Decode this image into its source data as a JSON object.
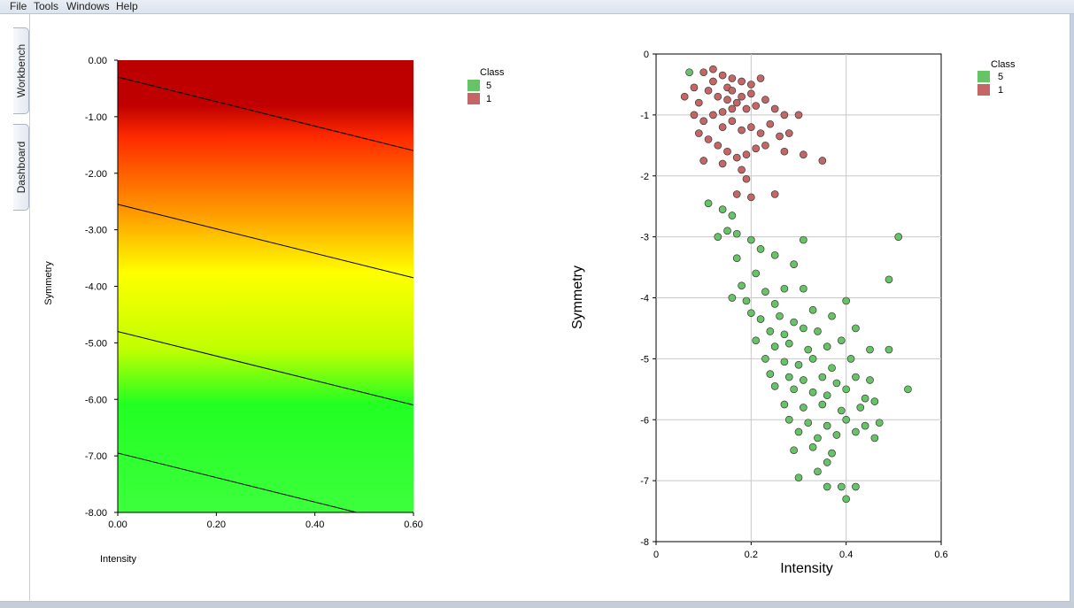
{
  "menu": [
    "File",
    "Tools",
    "Windows",
    "Help"
  ],
  "tabs": [
    "Workbench",
    "Dashboard"
  ],
  "colors": {
    "class_5": "#66c466",
    "class_1": "#c46666",
    "gradient_top": "#bb0000",
    "gradient_mid": "#ffff00",
    "gradient_low": "#3dff3d"
  },
  "left_plot": {
    "xlabel": "Intensity",
    "ylabel": "Symmetry",
    "xticks": [
      "0.00",
      "0.20",
      "0.40",
      "0.60"
    ],
    "yticks": [
      "0.00",
      "-1.00",
      "-2.00",
      "-3.00",
      "-4.00",
      "-5.00",
      "-6.00",
      "-7.00",
      "-8.00"
    ],
    "legend_title": "Class",
    "legend_items": [
      "5",
      "1"
    ]
  },
  "right_plot": {
    "xlabel": "Intensity",
    "ylabel": "Symmetry",
    "xticks": [
      "0",
      "0.2",
      "0.4",
      "0.6"
    ],
    "yticks": [
      "0",
      "-1",
      "-2",
      "-3",
      "-4",
      "-5",
      "-6",
      "-7",
      "-8"
    ],
    "legend_title": "Class",
    "legend_items": [
      "5",
      "1"
    ]
  },
  "chart_data": [
    {
      "type": "heatmap",
      "xlabel": "Intensity",
      "ylabel": "Symmetry",
      "xlim": [
        0,
        0.6
      ],
      "ylim": [
        -8,
        0
      ],
      "contours": [
        {
          "y_at_x0": -0.3,
          "y_at_x06": -1.6
        },
        {
          "y_at_x0": -2.55,
          "y_at_x06": -3.85
        },
        {
          "y_at_x0": -4.8,
          "y_at_x06": -6.1
        },
        {
          "y_at_x0": -6.95,
          "y_at_x06": -8.25
        }
      ],
      "legend": [
        "5",
        "1"
      ],
      "grid": false,
      "legend_position": "top-right"
    },
    {
      "type": "scatter",
      "xlabel": "Intensity",
      "ylabel": "Symmetry",
      "xlim": [
        0,
        0.6
      ],
      "ylim": [
        -8,
        0
      ],
      "grid": true,
      "legend_position": "top-right",
      "series": [
        {
          "name": "5",
          "points": [
            [
              0.07,
              -0.3
            ],
            [
              0.11,
              -2.45
            ],
            [
              0.14,
              -2.55
            ],
            [
              0.16,
              -2.65
            ],
            [
              0.15,
              -2.9
            ],
            [
              0.17,
              -2.95
            ],
            [
              0.13,
              -3.0
            ],
            [
              0.2,
              -3.05
            ],
            [
              0.31,
              -3.05
            ],
            [
              0.51,
              -3.0
            ],
            [
              0.22,
              -3.2
            ],
            [
              0.25,
              -3.3
            ],
            [
              0.17,
              -3.35
            ],
            [
              0.29,
              -3.45
            ],
            [
              0.21,
              -3.6
            ],
            [
              0.18,
              -3.8
            ],
            [
              0.23,
              -3.9
            ],
            [
              0.27,
              -3.85
            ],
            [
              0.16,
              -4.0
            ],
            [
              0.19,
              -4.05
            ],
            [
              0.25,
              -4.1
            ],
            [
              0.31,
              -3.85
            ],
            [
              0.49,
              -3.7
            ],
            [
              0.4,
              -4.05
            ],
            [
              0.2,
              -4.25
            ],
            [
              0.22,
              -4.35
            ],
            [
              0.26,
              -4.3
            ],
            [
              0.29,
              -4.4
            ],
            [
              0.33,
              -4.2
            ],
            [
              0.37,
              -4.3
            ],
            [
              0.24,
              -4.55
            ],
            [
              0.27,
              -4.6
            ],
            [
              0.31,
              -4.5
            ],
            [
              0.34,
              -4.55
            ],
            [
              0.42,
              -4.5
            ],
            [
              0.21,
              -4.7
            ],
            [
              0.25,
              -4.8
            ],
            [
              0.28,
              -4.75
            ],
            [
              0.32,
              -4.85
            ],
            [
              0.36,
              -4.8
            ],
            [
              0.39,
              -4.7
            ],
            [
              0.45,
              -4.85
            ],
            [
              0.23,
              -5.0
            ],
            [
              0.27,
              -5.05
            ],
            [
              0.3,
              -5.1
            ],
            [
              0.33,
              -5.0
            ],
            [
              0.37,
              -5.15
            ],
            [
              0.41,
              -5.0
            ],
            [
              0.49,
              -4.85
            ],
            [
              0.24,
              -5.25
            ],
            [
              0.28,
              -5.3
            ],
            [
              0.31,
              -5.35
            ],
            [
              0.35,
              -5.3
            ],
            [
              0.38,
              -5.4
            ],
            [
              0.42,
              -5.3
            ],
            [
              0.45,
              -5.35
            ],
            [
              0.25,
              -5.45
            ],
            [
              0.29,
              -5.5
            ],
            [
              0.33,
              -5.55
            ],
            [
              0.36,
              -5.6
            ],
            [
              0.4,
              -5.5
            ],
            [
              0.44,
              -5.65
            ],
            [
              0.53,
              -5.5
            ],
            [
              0.27,
              -5.75
            ],
            [
              0.31,
              -5.8
            ],
            [
              0.35,
              -5.75
            ],
            [
              0.39,
              -5.85
            ],
            [
              0.43,
              -5.8
            ],
            [
              0.46,
              -5.7
            ],
            [
              0.28,
              -6.0
            ],
            [
              0.32,
              -6.05
            ],
            [
              0.36,
              -6.1
            ],
            [
              0.4,
              -6.0
            ],
            [
              0.44,
              -6.1
            ],
            [
              0.47,
              -6.05
            ],
            [
              0.3,
              -6.2
            ],
            [
              0.34,
              -6.3
            ],
            [
              0.38,
              -6.25
            ],
            [
              0.42,
              -6.2
            ],
            [
              0.46,
              -6.3
            ],
            [
              0.33,
              -6.45
            ],
            [
              0.37,
              -6.55
            ],
            [
              0.29,
              -6.5
            ],
            [
              0.36,
              -6.7
            ],
            [
              0.34,
              -6.85
            ],
            [
              0.3,
              -6.95
            ],
            [
              0.36,
              -7.1
            ],
            [
              0.39,
              -7.1
            ],
            [
              0.42,
              -7.1
            ],
            [
              0.4,
              -7.3
            ]
          ]
        },
        {
          "name": "1",
          "points": [
            [
              0.06,
              -0.7
            ],
            [
              0.08,
              -0.55
            ],
            [
              0.1,
              -0.3
            ],
            [
              0.12,
              -0.25
            ],
            [
              0.14,
              -0.35
            ],
            [
              0.16,
              -0.4
            ],
            [
              0.18,
              -0.45
            ],
            [
              0.2,
              -0.5
            ],
            [
              0.22,
              -0.4
            ],
            [
              0.09,
              -0.8
            ],
            [
              0.11,
              -0.6
            ],
            [
              0.13,
              -0.7
            ],
            [
              0.15,
              -0.75
            ],
            [
              0.17,
              -0.8
            ],
            [
              0.19,
              -0.9
            ],
            [
              0.21,
              -0.85
            ],
            [
              0.23,
              -0.75
            ],
            [
              0.25,
              -0.9
            ],
            [
              0.27,
              -1.0
            ],
            [
              0.08,
              -1.0
            ],
            [
              0.1,
              -1.1
            ],
            [
              0.12,
              -1.0
            ],
            [
              0.14,
              -1.2
            ],
            [
              0.16,
              -1.1
            ],
            [
              0.18,
              -1.25
            ],
            [
              0.2,
              -1.2
            ],
            [
              0.22,
              -1.3
            ],
            [
              0.24,
              -1.15
            ],
            [
              0.26,
              -1.35
            ],
            [
              0.28,
              -1.3
            ],
            [
              0.09,
              -1.3
            ],
            [
              0.11,
              -1.4
            ],
            [
              0.13,
              -1.5
            ],
            [
              0.15,
              -1.6
            ],
            [
              0.17,
              -1.7
            ],
            [
              0.19,
              -1.65
            ],
            [
              0.21,
              -1.55
            ],
            [
              0.23,
              -1.5
            ],
            [
              0.27,
              -1.6
            ],
            [
              0.31,
              -1.65
            ],
            [
              0.35,
              -1.75
            ],
            [
              0.1,
              -1.75
            ],
            [
              0.14,
              -1.8
            ],
            [
              0.18,
              -1.9
            ],
            [
              0.19,
              -2.05
            ],
            [
              0.17,
              -2.3
            ],
            [
              0.2,
              -2.35
            ],
            [
              0.25,
              -2.3
            ],
            [
              0.3,
              -1.0
            ],
            [
              0.15,
              -0.55
            ],
            [
              0.12,
              -0.45
            ],
            [
              0.16,
              -0.6
            ],
            [
              0.18,
              -0.7
            ],
            [
              0.2,
              -0.65
            ],
            [
              0.14,
              -0.95
            ],
            [
              0.16,
              -0.9
            ]
          ]
        }
      ]
    }
  ]
}
